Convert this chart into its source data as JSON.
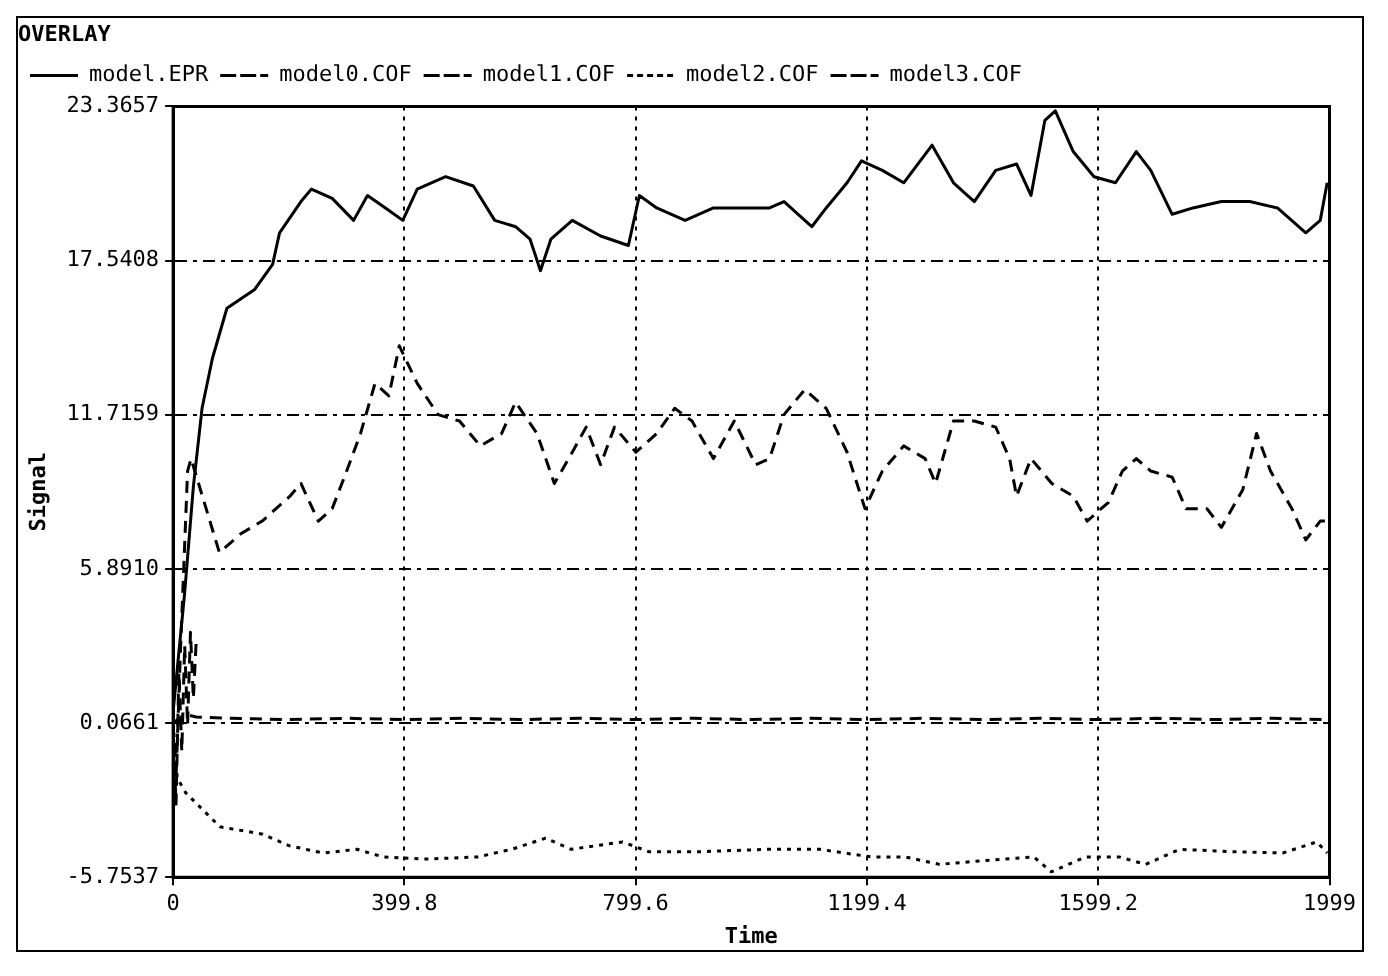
{
  "chart_data": {
    "type": "line",
    "title": "OVERLAY",
    "xlabel": "Time",
    "ylabel": "Signal",
    "legend": "top left",
    "grid": true,
    "xlim": [
      0,
      1999
    ],
    "xticks": [
      0,
      399.8,
      799.6,
      1199.4,
      1599.2,
      1999
    ],
    "ylim": [
      -5.7537,
      23.3657
    ],
    "yticks": [
      -5.7537,
      0.0661,
      {
        "value": 5.891,
        "label": "5.8910"
      },
      11.7159,
      17.5408,
      23.3657
    ],
    "series": [
      {
        "name": "model.EPR",
        "color": "#000000",
        "line_style": "solid",
        "x": [
          0,
          20,
          35,
          50,
          68,
          93,
          141,
          172,
          184,
          221,
          239,
          275,
          312,
          336,
          367,
          397,
          422,
          471,
          519,
          556,
          592,
          617,
          635,
          653,
          690,
          739,
          787,
          806,
          836,
          885,
          934,
          983,
          1031,
          1056,
          1104,
          1129,
          1165,
          1190,
          1226,
          1263,
          1312,
          1349,
          1385,
          1422,
          1458,
          1483,
          1507,
          1525,
          1556,
          1592,
          1629,
          1665,
          1690,
          1727,
          1763,
          1812,
          1861,
          1909,
          1958,
          1983,
          1995
        ],
        "values": [
          0.5,
          5,
          9,
          11.96,
          13.85,
          15.74,
          16.45,
          17.4,
          18.59,
          19.77,
          20.24,
          19.89,
          19.06,
          20,
          19.53,
          19.06,
          20.24,
          20.71,
          20.36,
          19.06,
          18.82,
          18.35,
          17.16,
          18.35,
          19.06,
          18.47,
          18.11,
          20,
          19.53,
          19.06,
          19.53,
          19.53,
          19.53,
          19.77,
          18.82,
          19.53,
          20.48,
          21.31,
          20.95,
          20.48,
          21.9,
          20.48,
          19.77,
          20.95,
          21.19,
          20,
          22.84,
          23.2,
          21.66,
          20.71,
          20.48,
          21.66,
          20.95,
          19.29,
          19.53,
          19.77,
          19.77,
          19.53,
          18.59,
          19.06,
          20.48
        ]
      },
      {
        "name": "model0.COF",
        "color": "#000000",
        "line_style": "dashed",
        "x": [
          0,
          5,
          13,
          25,
          31,
          80,
          117,
          154,
          178,
          202,
          221,
          251,
          275,
          300,
          324,
          349,
          373,
          391,
          422,
          458,
          495,
          531,
          568,
          592,
          629,
          659,
          690,
          714,
          739,
          763,
          800,
          836,
          867,
          897,
          934,
          970,
          1007,
          1031,
          1056,
          1092,
          1129,
          1165,
          1196,
          1226,
          1263,
          1300,
          1318,
          1349,
          1385,
          1422,
          1446,
          1458,
          1483,
          1519,
          1556,
          1580,
          1617,
          1641,
          1665,
          1690,
          1727,
          1751,
          1787,
          1812,
          1849,
          1873,
          1897,
          1934,
          1958,
          1983,
          1995
        ],
        "values": [
          0.07,
          -2,
          2.96,
          9.59,
          10.06,
          6.51,
          7.22,
          7.7,
          8.17,
          8.64,
          9.12,
          7.7,
          8.17,
          9.59,
          11.01,
          12.9,
          12.43,
          14.32,
          12.9,
          11.72,
          11.48,
          10.54,
          11.01,
          12.19,
          11.01,
          9.12,
          10.3,
          11.25,
          9.83,
          11.25,
          10.3,
          11.01,
          11.96,
          11.48,
          10.06,
          11.48,
          9.83,
          10.06,
          11.72,
          12.67,
          11.96,
          10.3,
          8.17,
          9.59,
          10.54,
          10.06,
          9.12,
          11.48,
          11.48,
          11.25,
          10.06,
          8.64,
          10.06,
          9.12,
          8.64,
          7.7,
          8.41,
          9.59,
          10.06,
          9.59,
          9.36,
          8.17,
          8.17,
          7.46,
          8.88,
          11.01,
          9.59,
          8.17,
          6.99,
          7.7,
          7.7
        ]
      },
      {
        "name": "model1.COF",
        "color": "#000000",
        "line_style": "dashed",
        "x": [
          0,
          20,
          40,
          100,
          200,
          300,
          400,
          500,
          600,
          700,
          800,
          900,
          1000,
          1100,
          1200,
          1300,
          1400,
          1500,
          1600,
          1700,
          1800,
          1900,
          1999
        ],
        "values": [
          0.07,
          0.4,
          0.3,
          0.25,
          0.2,
          0.25,
          0.2,
          0.25,
          0.2,
          0.25,
          0.2,
          0.25,
          0.2,
          0.25,
          0.2,
          0.25,
          0.2,
          0.25,
          0.2,
          0.25,
          0.2,
          0.25,
          0.2
        ]
      },
      {
        "name": "model2.COF",
        "color": "#000000",
        "line_style": "dotted",
        "x": [
          0,
          7,
          22,
          81,
          155,
          200,
          259,
          318,
          363,
          437,
          526,
          585,
          644,
          688,
          777,
          822,
          911,
          1029,
          1118,
          1207,
          1266,
          1325,
          1399,
          1488,
          1518,
          1577,
          1636,
          1681,
          1740,
          1829,
          1918,
          1977,
          1995
        ],
        "values": [
          0.07,
          -2,
          -2.57,
          -3.85,
          -4.13,
          -4.56,
          -4.84,
          -4.7,
          -4.99,
          -5.07,
          -4.99,
          -4.7,
          -4.28,
          -4.7,
          -4.42,
          -4.79,
          -4.79,
          -4.7,
          -4.7,
          -4.99,
          -4.99,
          -5.27,
          -5.13,
          -4.99,
          -5.55,
          -4.99,
          -4.99,
          -5.27,
          -4.7,
          -4.79,
          -4.84,
          -4.42,
          -4.84
        ]
      },
      {
        "name": "model3.COF",
        "color": "#000000",
        "line_style": "dashed",
        "x": [
          0,
          5,
          10,
          15,
          20,
          25,
          30,
          35,
          40
        ],
        "values": [
          0.07,
          -3,
          2,
          -1,
          3,
          0,
          3.5,
          1,
          3.2
        ]
      }
    ]
  }
}
